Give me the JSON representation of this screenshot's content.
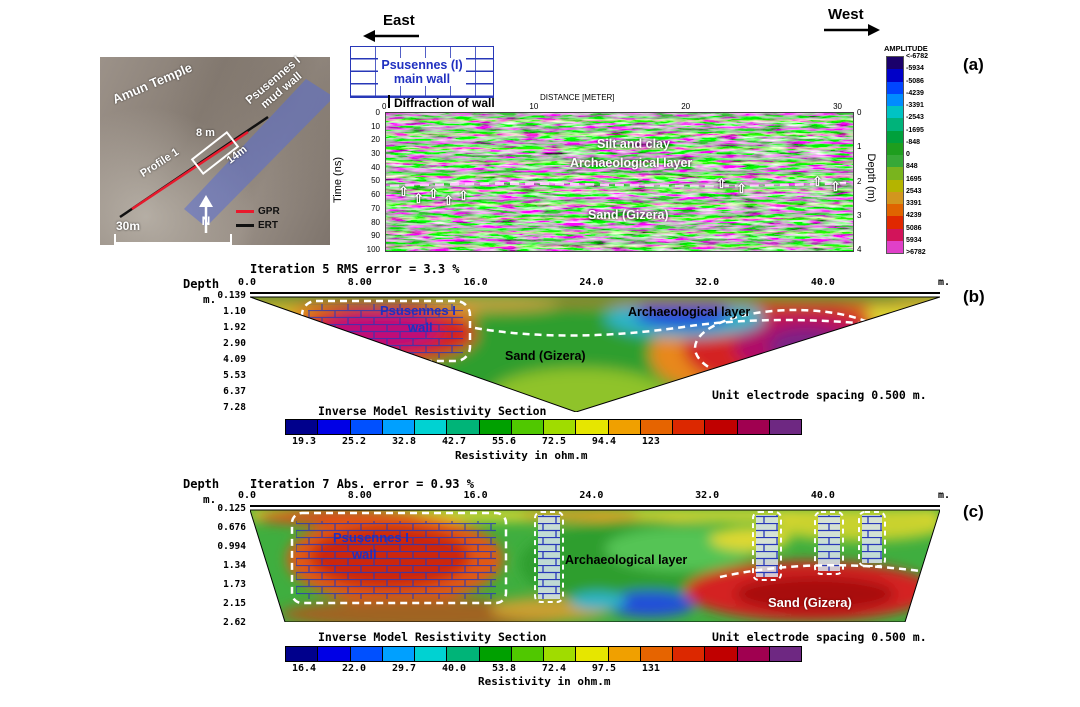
{
  "header": {
    "east": "East",
    "west": "West"
  },
  "panel_labels": {
    "a": "(a)",
    "b": "(b)",
    "c": "(c)"
  },
  "icons": {
    "up_arrow": "⇧"
  },
  "map": {
    "amun_temple": "Amun Temple",
    "mud_wall_line1": "Psusennes I",
    "mud_wall_line2": "mud wall",
    "profile": "Profile 1",
    "span_8m": "8 m",
    "span_14m": "14m",
    "north": "N",
    "scale": "30m",
    "legend": [
      {
        "label": "GPR",
        "color": "#e8192c"
      },
      {
        "label": "ERT",
        "color": "#111111"
      }
    ]
  },
  "wall_diagram": {
    "line1": "Psusennes (I)",
    "line2": "main wall"
  },
  "radargram": {
    "diffraction": "Diffraction of wall",
    "distance_label": "DISTANCE [METER]",
    "distance_ticks": [
      "0",
      "10",
      "20",
      "30"
    ],
    "time_label": "Time (ns)",
    "time_ticks": [
      "0",
      "10",
      "20",
      "30",
      "40",
      "50",
      "60",
      "70",
      "80",
      "90",
      "100"
    ],
    "depth_label": "Depth (m)",
    "depth_ticks": [
      "0",
      "1",
      "2",
      "3",
      "4"
    ],
    "layer_silt": "Silt and clay",
    "layer_arch": "Archaeological layer",
    "layer_sand": "Sand (Gizera)"
  },
  "amplitude": {
    "title": "AMPLITUDE",
    "ticks": [
      "<-6782",
      "-5934",
      "-5086",
      "-4239",
      "-3391",
      "-2543",
      "-1695",
      "-848",
      "0",
      "848",
      "1695",
      "2543",
      "3391",
      "4239",
      "5086",
      "5934",
      ">6782"
    ],
    "colors": [
      "#1a006b",
      "#0000c8",
      "#0045ff",
      "#008cff",
      "#00c3c3",
      "#00b37a",
      "#00a03c",
      "#1e9e1e",
      "#37a837",
      "#79b41e",
      "#b4b400",
      "#d2961e",
      "#e06400",
      "#e02800",
      "#d2145a",
      "#e040c8"
    ]
  },
  "resistivity_colors": [
    "#00008c",
    "#0000e6",
    "#0050ff",
    "#00a0ff",
    "#00d2d2",
    "#00b478",
    "#00a000",
    "#50c800",
    "#a0dc00",
    "#e6e600",
    "#f0a000",
    "#e66400",
    "#dc2800",
    "#c00000",
    "#a00050",
    "#6e2882"
  ],
  "section_b": {
    "iteration": "Iteration 5 RMS error = 3.3 %",
    "depth_word": "Depth",
    "depth_unit": "m.",
    "x_ticks": [
      "0.0",
      "8.00",
      "16.0",
      "24.0",
      "32.0",
      "40.0"
    ],
    "x_unit": "m.",
    "depth_ticks": [
      "0.139",
      "1.10",
      "1.92",
      "2.90",
      "4.09",
      "5.53",
      "6.37",
      "7.28"
    ],
    "wall_line1": "Psusennes I",
    "wall_line2": "wall",
    "arch_label": "Archaeological layer",
    "sand_label": "Sand (Gizera)",
    "electrode": "Unit electrode spacing 0.500 m.",
    "scale_title": "Inverse Model Resistivity Section",
    "scale_values": [
      "19.3",
      "25.2",
      "32.8",
      "42.7",
      "55.6",
      "72.5",
      "94.4",
      "123"
    ],
    "scale_unit": "Resistivity in ohm.m"
  },
  "section_c": {
    "iteration": "Iteration 7 Abs. error = 0.93 %",
    "depth_word": "Depth",
    "depth_unit": "m.",
    "x_ticks": [
      "0.0",
      "8.00",
      "16.0",
      "24.0",
      "32.0",
      "40.0"
    ],
    "x_unit": "m.",
    "depth_ticks": [
      "0.125",
      "0.676",
      "0.994",
      "1.34",
      "1.73",
      "2.15",
      "2.62"
    ],
    "wall_line1": "Psusennes I",
    "wall_line2": "wall",
    "arch_label": "Archaeological layer",
    "sand_label": "Sand (Gizera)",
    "electrode": "Unit electrode spacing 0.500 m.",
    "scale_title": "Inverse Model Resistivity Section",
    "scale_values": [
      "16.4",
      "22.0",
      "29.7",
      "40.0",
      "53.8",
      "72.4",
      "97.5",
      "131"
    ],
    "scale_unit": "Resistivity in ohm.m"
  }
}
